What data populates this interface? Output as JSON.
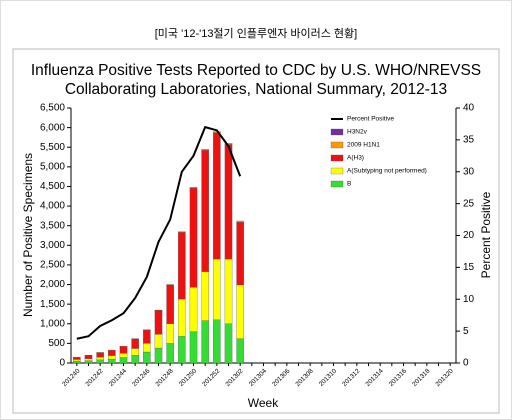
{
  "header": "[미국 '12-'13절기 인플루엔자 바이러스 현황]",
  "chart_data": {
    "type": "bar",
    "stacked": true,
    "title": [
      "Influenza Positive Tests Reported to CDC by U.S. WHO/NREVSS",
      "Collaborating Laboratories, National Summary, 2012-13"
    ],
    "x_label": "Week",
    "y_label": "Number of Positive Specimens",
    "y2_label": "Percent Positive",
    "legend": "upper right",
    "categories": [
      "201240",
      null,
      "201242",
      null,
      "201244",
      null,
      "201246",
      null,
      "201248",
      null,
      "201250",
      null,
      "201252",
      null,
      "201302",
      null,
      "201304",
      null,
      "201306",
      null,
      "201308",
      null,
      "201310",
      null,
      "201312",
      null,
      "201314",
      null,
      "201316",
      null,
      "201318",
      null,
      "201320"
    ],
    "ylim": [
      0,
      6500
    ],
    "yticks": [
      0,
      500,
      {
        "value": 1000,
        "label": "1,000"
      },
      {
        "value": 1500,
        "label": "1,500"
      },
      {
        "value": 2000,
        "label": "2,000"
      },
      {
        "value": 2500,
        "label": "2,500"
      },
      {
        "value": 3000,
        "label": "3,000"
      },
      {
        "value": 3500,
        "label": "3,500"
      },
      {
        "value": 4000,
        "label": "4,000"
      },
      {
        "value": 4500,
        "label": "4,500"
      },
      {
        "value": 5000,
        "label": "5,000"
      },
      {
        "value": 5500,
        "label": "5,500"
      },
      {
        "value": 6000,
        "label": "6,000"
      },
      {
        "value": 6500,
        "label": "6,500"
      }
    ],
    "y2lim": [
      0,
      40
    ],
    "y2ticks": [
      0,
      5,
      10,
      15,
      20,
      25,
      30,
      35,
      40
    ],
    "series": [
      {
        "name": "B",
        "color": "#33dd33",
        "values": [
          50,
          60,
          80,
          100,
          140,
          200,
          280,
          380,
          500,
          680,
          800,
          1080,
          1100,
          1000,
          620,
          null,
          null,
          null,
          null,
          null,
          null,
          null,
          null,
          null,
          null,
          null,
          null,
          null,
          null,
          null,
          null,
          null,
          null
        ]
      },
      {
        "name": "A(Subtyping not performed)",
        "color": "#ffff00",
        "values": [
          40,
          50,
          70,
          90,
          110,
          170,
          220,
          350,
          500,
          950,
          1130,
          1250,
          1550,
          1650,
          1370,
          null,
          null,
          null,
          null,
          null,
          null,
          null,
          null,
          null,
          null,
          null,
          null,
          null,
          null,
          null,
          null,
          null,
          null
        ]
      },
      {
        "name": "A(H3)",
        "color": "#ee1111",
        "values": [
          55,
          85,
          115,
          135,
          175,
          245,
          340,
          610,
          990,
          1700,
          2530,
          3090,
          3220,
          2920,
          1600,
          null,
          null,
          null,
          null,
          null,
          null,
          null,
          null,
          null,
          null,
          null,
          null,
          null,
          null,
          null,
          null,
          null,
          null
        ]
      },
      {
        "name": "2009 H1N1",
        "color": "#ff9900",
        "values": [
          5,
          5,
          5,
          5,
          5,
          5,
          10,
          10,
          10,
          20,
          20,
          30,
          30,
          30,
          30,
          null,
          null,
          null,
          null,
          null,
          null,
          null,
          null,
          null,
          null,
          null,
          null,
          null,
          null,
          null,
          null,
          null,
          null
        ]
      },
      {
        "name": "H3N2v",
        "color": "#7030a0",
        "values": [
          0,
          0,
          0,
          0,
          0,
          0,
          0,
          0,
          0,
          0,
          0,
          0,
          0,
          0,
          0,
          null,
          null,
          null,
          null,
          null,
          null,
          null,
          null,
          null,
          null,
          null,
          null,
          null,
          null,
          null,
          null,
          null,
          null
        ]
      },
      {
        "name": "Percent Positive",
        "color": "#000000",
        "type": "line",
        "axis": "y2",
        "values": [
          3.8,
          4.2,
          5.8,
          6.7,
          7.8,
          10.2,
          13.5,
          19,
          22.5,
          30,
          32.5,
          37,
          36.5,
          34,
          29.3,
          null,
          null,
          null,
          null,
          null,
          null,
          null,
          null,
          null,
          null,
          null,
          null,
          null,
          null,
          null,
          null,
          null,
          null
        ]
      }
    ]
  }
}
